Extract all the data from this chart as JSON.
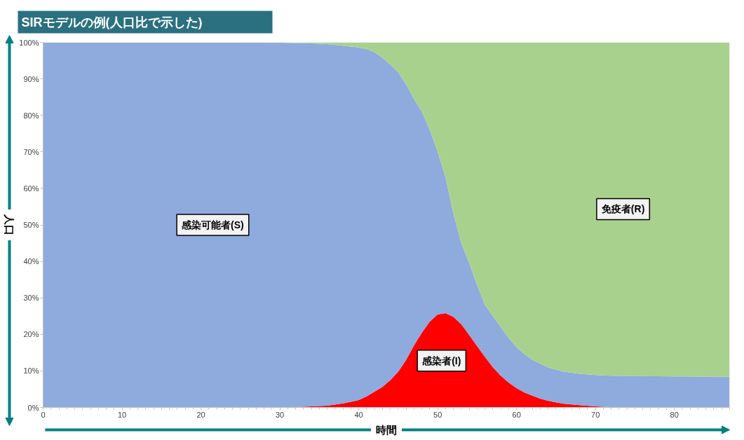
{
  "chart_data": {
    "type": "area",
    "title": "SIRモデルの例(人口比で示した)",
    "xlabel": "時間",
    "ylabel": "人口",
    "stacked": true,
    "x": [
      0,
      10,
      20,
      25,
      30,
      32,
      34,
      36,
      38,
      40,
      41,
      42,
      43,
      44,
      45,
      46,
      47,
      48,
      49,
      50,
      51,
      52,
      53,
      54,
      55,
      56,
      57,
      58,
      59,
      60,
      61,
      62,
      63,
      64,
      65,
      66,
      68,
      70,
      72,
      75,
      80,
      87
    ],
    "series": [
      {
        "name": "感染者(I)",
        "color": "#ff0000",
        "values": [
          0,
          0,
          0,
          0,
          0,
          0.1,
          0.3,
          0.5,
          1.1,
          2.0,
          3.0,
          4.3,
          5.6,
          7.5,
          9.8,
          13.0,
          17.0,
          20.5,
          23.5,
          25.5,
          25.8,
          24.8,
          22.8,
          19.8,
          16.8,
          13.8,
          11.0,
          8.7,
          6.8,
          5.3,
          4.1,
          3.2,
          2.4,
          1.8,
          1.4,
          1.0,
          0.6,
          0.3,
          0.1,
          0,
          0,
          0
        ]
      },
      {
        "name": "感染可能者(S)",
        "color": "#8faadc",
        "values": [
          100,
          100,
          100,
          100,
          99.9,
          99.7,
          99.4,
          99.0,
          98.0,
          96.6,
          95.2,
          93.0,
          90.2,
          86.4,
          82.0,
          75.5,
          67.5,
          60.5,
          52.5,
          44.5,
          37.2,
          28.2,
          22.2,
          19.7,
          16.7,
          14.2,
          14.0,
          13.3,
          12.2,
          11.2,
          10.5,
          9.8,
          9.6,
          9.2,
          8.9,
          8.8,
          8.6,
          8.6,
          8.6,
          8.6,
          8.5,
          8.4
        ]
      },
      {
        "name": "免疫者(R)",
        "color": "#a9d18e",
        "values": [
          0,
          0,
          0,
          0,
          0.1,
          0.2,
          0.3,
          0.5,
          0.9,
          1.4,
          1.8,
          2.7,
          4.2,
          6.1,
          8.2,
          11.5,
          15.5,
          19.0,
          24.0,
          30.0,
          37.0,
          47.0,
          55.0,
          60.5,
          66.5,
          72.0,
          75.0,
          78.0,
          81.0,
          83.5,
          85.4,
          87.0,
          88.0,
          89.0,
          89.7,
          90.2,
          90.8,
          91.1,
          91.3,
          91.4,
          91.5,
          91.6
        ]
      }
    ],
    "xlim": [
      0,
      87
    ],
    "xticks": [
      0,
      10,
      20,
      30,
      40,
      50,
      60,
      70,
      80
    ],
    "ylim": [
      0,
      100
    ],
    "yticks": [
      {
        "value": 0,
        "label": "0%"
      },
      {
        "value": 10,
        "label": "10%"
      },
      {
        "value": 20,
        "label": "20%"
      },
      {
        "value": 30,
        "label": "30%"
      },
      {
        "value": 40,
        "label": "40%"
      },
      {
        "value": 50,
        "label": "50%"
      },
      {
        "value": 60,
        "label": "60%"
      },
      {
        "value": 70,
        "label": "70%"
      },
      {
        "value": 80,
        "label": "80%"
      },
      {
        "value": 90,
        "label": "90%"
      },
      {
        "value": 100,
        "label": "100%"
      }
    ]
  }
}
